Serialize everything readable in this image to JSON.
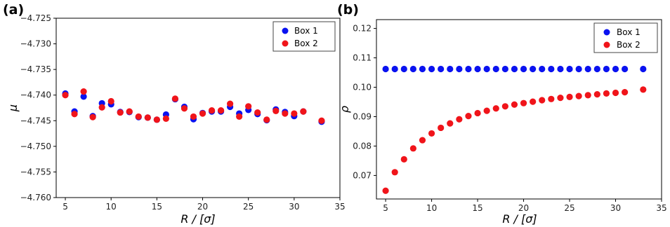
{
  "panels": [
    {
      "label": "(a)",
      "xlabel": "R / [σ]",
      "ylabel": "μ"
    },
    {
      "label": "(b)",
      "xlabel": "R / [σ]",
      "ylabel": "ρ"
    }
  ],
  "colors": {
    "box1": "#0a12f0",
    "box2": "#f0141a"
  },
  "chart_data": [
    {
      "type": "scatter",
      "title": "",
      "xlabel": "R / [σ]",
      "ylabel": "μ",
      "xlim": [
        4,
        35
      ],
      "ylim": [
        -4.76,
        -4.725
      ],
      "xticks": [
        5,
        10,
        15,
        20,
        25,
        30,
        35
      ],
      "yticks": [
        -4.76,
        -4.755,
        -4.75,
        -4.745,
        -4.74,
        -4.735,
        -4.73,
        -4.725
      ],
      "ytick_labels": [
        "−4.760",
        "−4.755",
        "−4.750",
        "−4.745",
        "−4.740",
        "−4.735",
        "−4.730",
        "−4.725"
      ],
      "legend_position": "top-right",
      "x": [
        5,
        6,
        7,
        8,
        9,
        10,
        11,
        12,
        13,
        14,
        15,
        16,
        17,
        18,
        19,
        20,
        21,
        22,
        23,
        24,
        25,
        26,
        27,
        28,
        29,
        30,
        31,
        33
      ],
      "series": [
        {
          "name": "Box 1",
          "values": [
            -4.7397,
            -4.7432,
            -4.7403,
            -4.7441,
            -4.7416,
            -4.7418,
            -4.7433,
            -4.7433,
            -4.7443,
            -4.7444,
            -4.7448,
            -4.7438,
            -4.7408,
            -4.7423,
            -4.7447,
            -4.7435,
            -4.7432,
            -4.7432,
            -4.7423,
            -4.7436,
            -4.7429,
            -4.7437,
            -4.7449,
            -4.7428,
            -4.7433,
            -4.7441,
            -4.7432,
            -4.7452
          ]
        },
        {
          "name": "Box 2",
          "values": [
            -4.74,
            -4.7437,
            -4.7393,
            -4.7443,
            -4.7424,
            -4.7412,
            -4.7434,
            -4.7432,
            -4.7442,
            -4.7444,
            -4.7448,
            -4.7446,
            -4.7407,
            -4.7426,
            -4.7442,
            -4.7436,
            -4.743,
            -4.743,
            -4.7417,
            -4.7442,
            -4.7422,
            -4.7434,
            -4.7448,
            -4.7431,
            -4.7436,
            -4.7436,
            -4.7432,
            -4.745
          ]
        }
      ]
    },
    {
      "type": "scatter",
      "title": "",
      "xlabel": "R / [σ]",
      "ylabel": "ρ",
      "xlim": [
        4,
        35
      ],
      "ylim": [
        0.062,
        0.123
      ],
      "xticks": [
        5,
        10,
        15,
        20,
        25,
        30,
        35
      ],
      "yticks": [
        0.07,
        0.08,
        0.09,
        0.1,
        0.11,
        0.12
      ],
      "ytick_labels": [
        "0.07",
        "0.08",
        "0.09",
        "0.10",
        "0.11",
        "0.12"
      ],
      "legend_position": "top-right",
      "x": [
        5,
        6,
        7,
        8,
        9,
        10,
        11,
        12,
        13,
        14,
        15,
        16,
        17,
        18,
        19,
        20,
        21,
        22,
        23,
        24,
        25,
        26,
        27,
        28,
        29,
        30,
        31,
        33
      ],
      "series": [
        {
          "name": "Box 1",
          "values": [
            0.1062,
            0.1062,
            0.1062,
            0.1062,
            0.1062,
            0.1062,
            0.1062,
            0.1062,
            0.1062,
            0.1062,
            0.1062,
            0.1062,
            0.1062,
            0.1062,
            0.1062,
            0.1062,
            0.1062,
            0.1062,
            0.1062,
            0.1062,
            0.1062,
            0.1062,
            0.1062,
            0.1062,
            0.1062,
            0.1062,
            0.1062,
            0.1062
          ]
        },
        {
          "name": "Box 2",
          "values": [
            0.0648,
            0.0711,
            0.0755,
            0.0792,
            0.082,
            0.0843,
            0.0862,
            0.0877,
            0.0891,
            0.0902,
            0.0912,
            0.092,
            0.0928,
            0.0935,
            0.0941,
            0.0946,
            0.0951,
            0.0956,
            0.096,
            0.0964,
            0.0967,
            0.097,
            0.0973,
            0.0976,
            0.0979,
            0.0981,
            0.0983,
            0.0992
          ]
        }
      ]
    }
  ]
}
